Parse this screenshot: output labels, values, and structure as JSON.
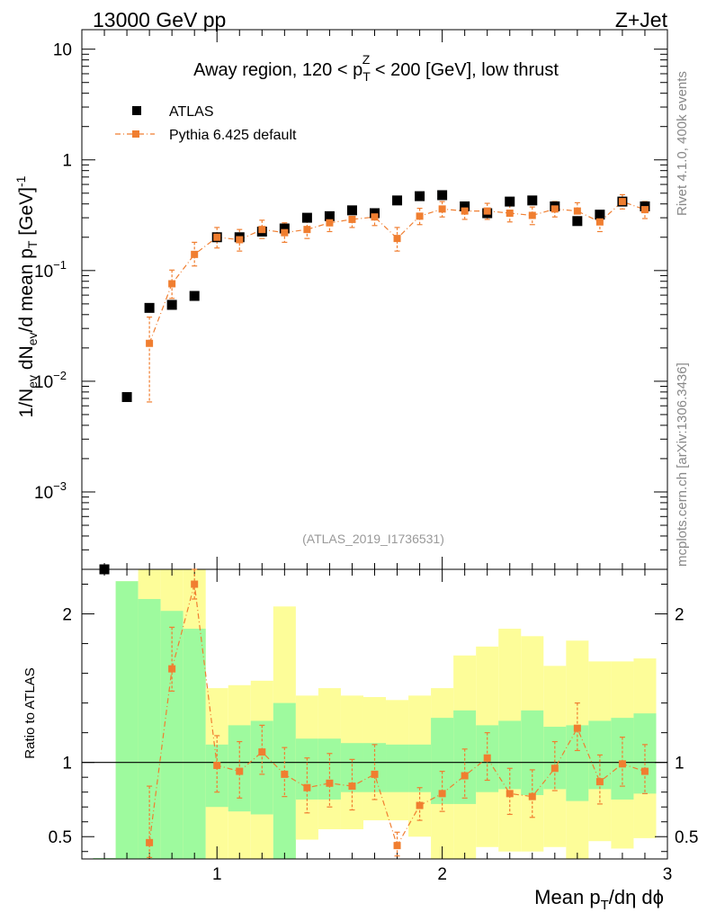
{
  "header": {
    "left": "13000 GeV pp",
    "right": "Z+Jet"
  },
  "side_labels": {
    "rivet": "Rivet 4.1.0,  400k events",
    "mcplots": "mcplots.cern.ch [arXiv:1306.3436]"
  },
  "chart_data": {
    "type": "scatter",
    "title_parts": {
      "prefix": "Away region, 120 < p",
      "sup": "Z",
      "sub": "T",
      "suffix": " < 200 [GeV], low thrust"
    },
    "analysis_id": "(ATLAS_2019_I1736531)",
    "ylabel": "1/N_ev dN_ev/d mean p_T [GeV]^-1",
    "ratio_ylabel": "Ratio to ATLAS",
    "xlabel": "Mean p_T/dη dϕ",
    "xlim": [
      0.4,
      3.0
    ],
    "ylim": [
      0.0002,
      15
    ],
    "ratio_ylim": [
      0.35,
      2.3
    ],
    "x_ticks": [
      "1",
      "2",
      "3"
    ],
    "y_ticks": [
      "10^-3",
      "10^-2",
      "10^-1",
      "1",
      "10"
    ],
    "ratio_y_ticks": [
      "0.5",
      "1",
      "2"
    ],
    "legend": [
      {
        "name": "ATLAS",
        "color": "#000000",
        "marker": "square"
      },
      {
        "name": "Pythia 6.425 default",
        "color": "#f07e30",
        "marker": "square-line"
      }
    ],
    "x": [
      0.5,
      0.6,
      0.7,
      0.8,
      0.9,
      1.0,
      1.1,
      1.2,
      1.3,
      1.4,
      1.5,
      1.6,
      1.7,
      1.8,
      1.9,
      2.0,
      2.1,
      2.2,
      2.3,
      2.4,
      2.5,
      2.6,
      2.7,
      2.8,
      2.9
    ],
    "series": [
      {
        "name": "ATLAS",
        "values": [
          0.00019,
          0.0072,
          0.046,
          0.049,
          0.059,
          0.2,
          0.2,
          0.225,
          0.24,
          0.3,
          0.31,
          0.35,
          0.33,
          0.43,
          0.47,
          0.48,
          0.38,
          0.33,
          0.42,
          0.43,
          0.38,
          0.28,
          0.32,
          0.42,
          0.38
        ]
      },
      {
        "name": "Pythia 6.425 default",
        "values": [
          null,
          null,
          0.022,
          0.076,
          0.14,
          0.2,
          0.19,
          0.235,
          0.22,
          0.235,
          0.27,
          0.29,
          0.305,
          0.195,
          0.31,
          0.36,
          0.345,
          0.345,
          0.33,
          0.315,
          0.36,
          0.345,
          0.275,
          0.42,
          0.355
        ],
        "err_low": [
          null,
          null,
          0.0155,
          0.02,
          0.03,
          0.04,
          0.04,
          0.04,
          0.04,
          0.04,
          0.045,
          0.045,
          0.05,
          0.045,
          0.05,
          0.055,
          0.055,
          0.055,
          0.055,
          0.055,
          0.055,
          0.06,
          0.05,
          0.06,
          0.06
        ],
        "err_high": [
          null,
          null,
          0.016,
          0.025,
          0.04,
          0.045,
          0.045,
          0.05,
          0.05,
          0.05,
          0.05,
          0.05,
          0.055,
          0.05,
          0.055,
          0.06,
          0.06,
          0.06,
          0.06,
          0.06,
          0.06,
          0.065,
          0.055,
          0.065,
          0.065
        ]
      }
    ],
    "ratio": {
      "values": [
        null,
        null,
        0.46,
        1.63,
        2.2,
        0.98,
        0.94,
        1.07,
        0.92,
        0.83,
        0.86,
        0.84,
        0.92,
        0.44,
        0.71,
        0.79,
        0.91,
        1.03,
        0.79,
        0.77,
        0.96,
        1.23,
        0.87,
        0.99,
        0.94
      ],
      "err_low": [
        null,
        null,
        0.1,
        0.15,
        0.1,
        0.18,
        0.18,
        0.15,
        0.15,
        0.17,
        0.16,
        0.16,
        0.17,
        0.07,
        0.1,
        0.12,
        0.15,
        0.15,
        0.14,
        0.14,
        0.15,
        0.15,
        0.15,
        0.15,
        0.15
      ],
      "err_high": [
        null,
        null,
        0.38,
        0.28,
        0.12,
        0.2,
        0.2,
        0.18,
        0.18,
        0.2,
        0.2,
        0.18,
        0.2,
        0.09,
        0.12,
        0.15,
        0.18,
        0.17,
        0.17,
        0.18,
        0.18,
        0.17,
        0.18,
        0.18,
        0.18
      ],
      "band_inner": [
        [
          0.35,
          2.22
        ],
        [
          0.35,
          2.22
        ],
        [
          0.35,
          2.1
        ],
        [
          0.35,
          2.02
        ],
        [
          0.35,
          1.9
        ],
        [
          0.7,
          1.12
        ],
        [
          0.67,
          1.25
        ],
        [
          0.65,
          1.28
        ],
        [
          0.35,
          1.4
        ],
        [
          0.75,
          1.16
        ],
        [
          0.75,
          1.16
        ],
        [
          0.8,
          1.13
        ],
        [
          0.8,
          1.13
        ],
        [
          0.8,
          1.12
        ],
        [
          0.8,
          1.12
        ],
        [
          0.72,
          1.3
        ],
        [
          0.72,
          1.35
        ],
        [
          0.8,
          1.25
        ],
        [
          0.82,
          1.28
        ],
        [
          0.78,
          1.35
        ],
        [
          0.82,
          1.24
        ],
        [
          0.74,
          1.25
        ],
        [
          0.82,
          1.28
        ],
        [
          0.75,
          1.3
        ],
        [
          0.79,
          1.33
        ]
      ],
      "band_outer": [
        [
          0.35,
          2.22
        ],
        [
          0.35,
          2.22
        ],
        [
          0.35,
          2.3
        ],
        [
          0.35,
          2.3
        ],
        [
          0.35,
          2.3
        ],
        [
          0.35,
          1.5
        ],
        [
          0.35,
          1.52
        ],
        [
          0.35,
          1.55
        ],
        [
          0.35,
          2.05
        ],
        [
          0.48,
          1.45
        ],
        [
          0.55,
          1.5
        ],
        [
          0.55,
          1.45
        ],
        [
          0.61,
          1.44
        ],
        [
          0.61,
          1.42
        ],
        [
          0.5,
          1.45
        ],
        [
          0.35,
          1.5
        ],
        [
          0.35,
          1.72
        ],
        [
          0.43,
          1.78
        ],
        [
          0.4,
          1.9
        ],
        [
          0.4,
          1.85
        ],
        [
          0.43,
          1.65
        ],
        [
          0.35,
          1.82
        ],
        [
          0.47,
          1.68
        ],
        [
          0.42,
          1.68
        ],
        [
          0.49,
          1.7
        ]
      ],
      "colors": {
        "inner": "#9efa9e",
        "outer": "#fdfd99"
      }
    }
  }
}
